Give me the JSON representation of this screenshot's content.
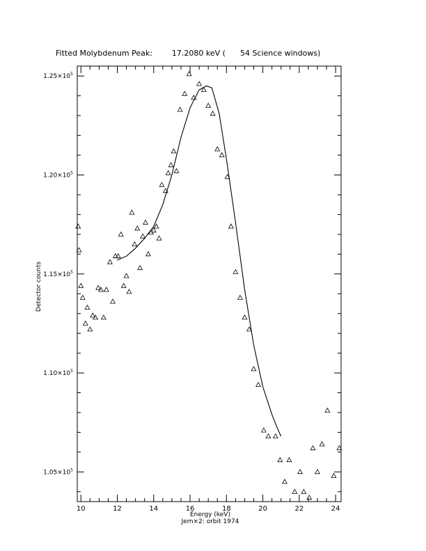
{
  "chart_data": {
    "type": "scatter",
    "title": "Fitted Molybdenum Peak:        17.2080 keV (      54 Science windows)",
    "xlabel": "Energy (keV)",
    "ylabel": "Detector counts",
    "subtitle": "Jem×2: orbit 1974",
    "xlim": [
      9.8,
      24.3
    ],
    "ylim": [
      103500,
      125500
    ],
    "x_ticks": [
      10,
      12,
      14,
      16,
      18,
      20,
      22,
      24
    ],
    "y_ticks": [
      {
        "value": 105000,
        "mantissa": "1.05×10",
        "exp": "5"
      },
      {
        "value": 110000,
        "mantissa": "1.10×10",
        "exp": "5"
      },
      {
        "value": 115000,
        "mantissa": "1.15×10",
        "exp": "5"
      },
      {
        "value": 120000,
        "mantissa": "1.20×10",
        "exp": "5"
      },
      {
        "value": 125000,
        "mantissa": "1.25×10",
        "exp": "5"
      }
    ],
    "grid": false,
    "series": [
      {
        "marker": "triangle",
        "x": [
          9.85,
          9.9,
          10.0,
          10.1,
          10.25,
          10.35,
          10.5,
          10.65,
          10.8,
          10.95,
          11.1,
          11.25,
          11.4,
          11.6,
          11.75,
          11.9,
          12.05,
          12.2,
          12.35,
          12.5,
          12.65,
          12.8,
          12.95,
          13.1,
          13.25,
          13.4,
          13.55,
          13.7,
          13.85,
          14.0,
          14.15,
          14.3,
          14.45,
          14.65,
          14.8,
          14.95,
          15.1,
          15.25,
          15.45,
          15.7,
          15.95,
          16.2,
          16.5,
          16.75,
          17.0,
          17.25,
          17.5,
          17.75,
          18.05,
          18.25,
          18.5,
          18.75,
          19.0,
          19.25,
          19.5,
          19.75,
          20.05,
          20.3,
          20.7,
          20.95,
          21.2,
          21.45,
          21.75,
          22.05,
          22.25,
          22.55,
          22.75,
          23.0,
          23.25,
          23.55,
          23.9,
          24.2
        ],
        "y": [
          117400,
          116200,
          114400,
          113800,
          112500,
          113300,
          112200,
          112900,
          112800,
          114300,
          114200,
          112800,
          114200,
          115600,
          113600,
          115900,
          115900,
          117000,
          114400,
          114900,
          114100,
          118100,
          116500,
          117300,
          115300,
          116900,
          117600,
          116000,
          117100,
          117200,
          117400,
          116800,
          119500,
          119200,
          120100,
          120500,
          121200,
          120200,
          123300,
          124100,
          125100,
          123900,
          124600,
          124300,
          123500,
          123100,
          121300,
          121000,
          119900,
          117400,
          115100,
          113800,
          112800,
          112200,
          110200,
          109400,
          107100,
          106800,
          106800,
          105600,
          104500,
          105600,
          104000,
          105000,
          104000,
          103700,
          106200,
          105000,
          106400,
          108100,
          104800,
          106200
        ]
      },
      {
        "marker": "line",
        "x": [
          12.0,
          12.5,
          13.0,
          13.5,
          14.0,
          14.5,
          15.0,
          15.5,
          16.0,
          16.5,
          16.9,
          17.2,
          17.6,
          18.0,
          18.5,
          19.0,
          19.5,
          20.0,
          20.5,
          20.8,
          21.0
        ],
        "y": [
          115700,
          115900,
          116300,
          116800,
          117400,
          118500,
          120000,
          121900,
          123400,
          124300,
          124500,
          124400,
          123100,
          120800,
          117600,
          114200,
          111400,
          109300,
          107900,
          107200,
          106800
        ]
      }
    ]
  }
}
